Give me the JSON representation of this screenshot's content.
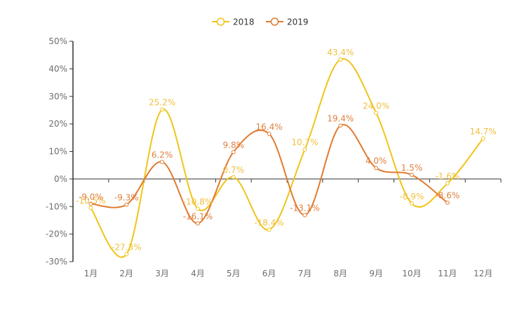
{
  "chart_data": {
    "type": "line",
    "title": "",
    "xlabel": "",
    "ylabel": "",
    "categories": [
      "1月",
      "2月",
      "3月",
      "4月",
      "5月",
      "6月",
      "7月",
      "8月",
      "9月",
      "10月",
      "11月",
      "12月"
    ],
    "ylim": [
      -30,
      50
    ],
    "yticks": [
      -30,
      -20,
      -10,
      0,
      10,
      20,
      30,
      40,
      50
    ],
    "ytick_labels": [
      "-30%",
      "-20%",
      "-10%",
      "0%",
      "10%",
      "20%",
      "30%",
      "40%",
      "50%"
    ],
    "value_suffix": "%",
    "smooth": true,
    "grid": false,
    "legend_position": "top-center",
    "series": [
      {
        "name": "2018",
        "color": "#f0c419",
        "label_color": "#f0c040",
        "values": [
          -10.5,
          -27.3,
          25.2,
          -10.8,
          0.7,
          -18.4,
          10.7,
          43.4,
          24.0,
          -8.9,
          -1.6,
          14.7
        ],
        "labels": [
          "-10.5%",
          "-27.3%",
          "25.2%",
          "-10.8%",
          "0.7%",
          "-18.4%",
          "10.7%",
          "43.4%",
          "24.0%",
          "-8.9%",
          "-1.6%",
          "14.7%"
        ]
      },
      {
        "name": "2019",
        "color": "#e07b30",
        "label_color": "#e08040",
        "values": [
          -9.0,
          -9.3,
          6.2,
          -16.1,
          9.8,
          16.4,
          -13.1,
          19.4,
          4.0,
          1.5,
          -8.6,
          null
        ],
        "labels": [
          "-9.0%",
          "-9.3%",
          "6.2%",
          "-16.1%",
          "9.8%",
          "16.4%",
          "-13.1%",
          "19.4%",
          "4.0%",
          "1.5%",
          "-8.6%",
          null
        ]
      }
    ]
  }
}
